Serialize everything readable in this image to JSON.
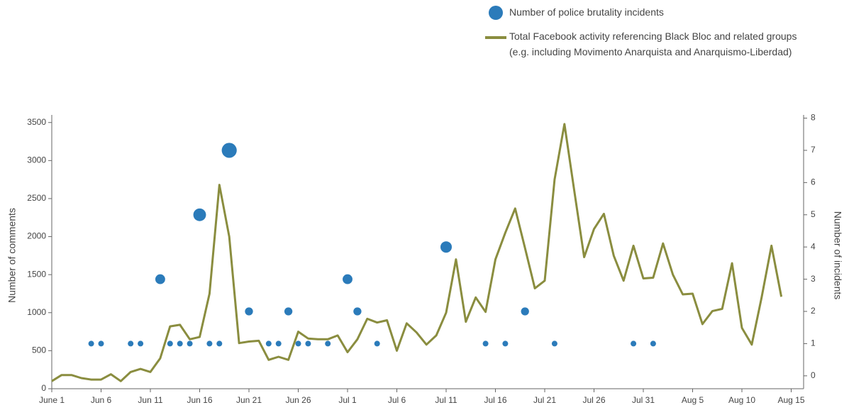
{
  "chart_data": {
    "type": "line",
    "y_label": "Number of comments",
    "y2_label": "Number of incidents",
    "categories": [
      "June 1",
      null,
      null,
      null,
      null,
      "Jun 6",
      null,
      null,
      null,
      null,
      "Jun 11",
      null,
      null,
      null,
      null,
      "Jun 16",
      null,
      null,
      null,
      null,
      "Jun 21",
      null,
      null,
      null,
      null,
      "Jun 26",
      null,
      null,
      null,
      null,
      "Jul 1",
      null,
      null,
      null,
      null,
      "Jul 6",
      null,
      null,
      null,
      null,
      "Jul 11",
      null,
      null,
      null,
      null,
      "Jul 16",
      null,
      null,
      null,
      null,
      "Jul 21",
      null,
      null,
      null,
      null,
      "Jul 26",
      null,
      null,
      null,
      null,
      "Jul 31",
      null,
      null,
      null,
      null,
      "Aug 5",
      null,
      null,
      null,
      null,
      "Aug 10",
      null,
      null,
      null,
      null,
      "Aug 15"
    ],
    "series": [
      {
        "name": "Number of police brutality incidents",
        "type": "scatter",
        "axis": "y2",
        "color": "#2b7bba",
        "values": [
          null,
          null,
          null,
          null,
          1,
          1,
          null,
          null,
          1,
          1,
          null,
          3,
          1,
          1,
          1,
          5,
          1,
          1,
          7,
          null,
          2,
          null,
          1,
          1,
          2,
          1,
          1,
          null,
          1,
          null,
          3,
          2,
          null,
          1,
          null,
          null,
          null,
          null,
          null,
          null,
          4,
          null,
          null,
          null,
          1,
          null,
          1,
          null,
          2,
          null,
          null,
          1,
          null,
          null,
          null,
          null,
          null,
          null,
          null,
          1,
          null,
          1,
          null,
          null,
          null,
          null,
          null,
          null,
          null,
          null,
          null,
          null,
          null,
          null,
          null,
          null
        ]
      },
      {
        "name": "Total Facebook activity referencing Black Bloc and related groups (e.g. including Movimento Anarquista and Anarquismo-Liberdad)",
        "type": "line",
        "color": "#8a8d3f",
        "values": [
          100,
          180,
          180,
          140,
          120,
          120,
          190,
          100,
          220,
          260,
          220,
          400,
          820,
          840,
          650,
          680,
          1250,
          2680,
          2000,
          600,
          620,
          630,
          380,
          420,
          380,
          750,
          660,
          650,
          650,
          700,
          480,
          650,
          920,
          870,
          900,
          500,
          860,
          740,
          580,
          700,
          1000,
          1700,
          880,
          1200,
          1010,
          1700,
          2050,
          2370,
          1850,
          1320,
          1420,
          2750,
          3480,
          2600,
          1730,
          2100,
          2300,
          1750,
          1420,
          1880,
          1450,
          1460,
          1910,
          1500,
          1240,
          1250,
          850,
          1020,
          1050,
          1650,
          800,
          580,
          1200,
          1880,
          1210,
          null
        ]
      }
    ],
    "ylim": [
      0,
      3600
    ],
    "yticks": [
      0,
      500,
      1000,
      1500,
      2000,
      2500,
      3000,
      3500
    ],
    "y2lim": [
      -0.4,
      8.1
    ],
    "y2ticks": [
      0,
      1,
      2,
      3,
      4,
      5,
      6,
      7,
      8
    ]
  }
}
